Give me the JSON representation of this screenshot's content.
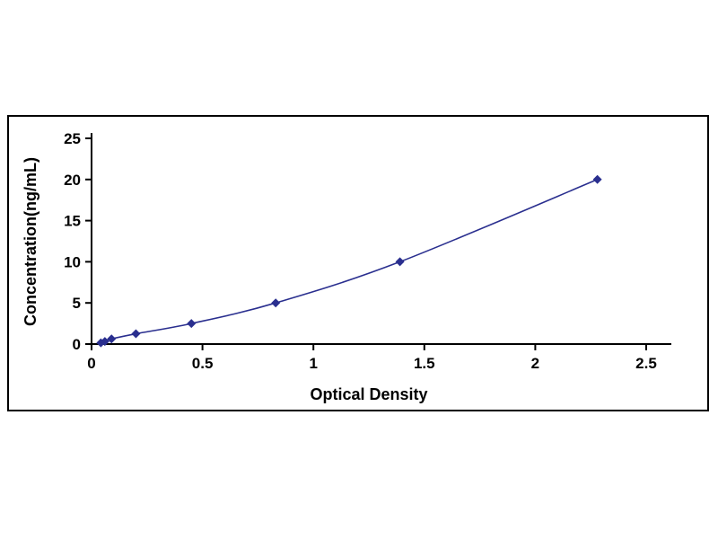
{
  "page": {
    "background": "#ffffff"
  },
  "figure": {
    "border_color": "#000000"
  },
  "chart_data": {
    "type": "line",
    "title": "",
    "xlabel": "Optical Density",
    "ylabel": "Concentration(ng/mL)",
    "x": [
      0.042,
      0.06,
      0.09,
      0.2,
      0.45,
      0.83,
      1.39,
      2.28
    ],
    "y": [
      0.156,
      0.313,
      0.625,
      1.25,
      2.5,
      5,
      10,
      20
    ],
    "xlim": [
      0,
      2.5
    ],
    "ylim": [
      0,
      25
    ],
    "x_ticks": [
      0,
      0.5,
      1,
      1.5,
      2,
      2.5
    ],
    "y_ticks": [
      0,
      5,
      10,
      15,
      20,
      25
    ],
    "grid": false,
    "legend": false,
    "marker": "diamond",
    "series_color": "#2a2f8f",
    "axis_color": "#000000",
    "tick_label_color": "#000000"
  }
}
